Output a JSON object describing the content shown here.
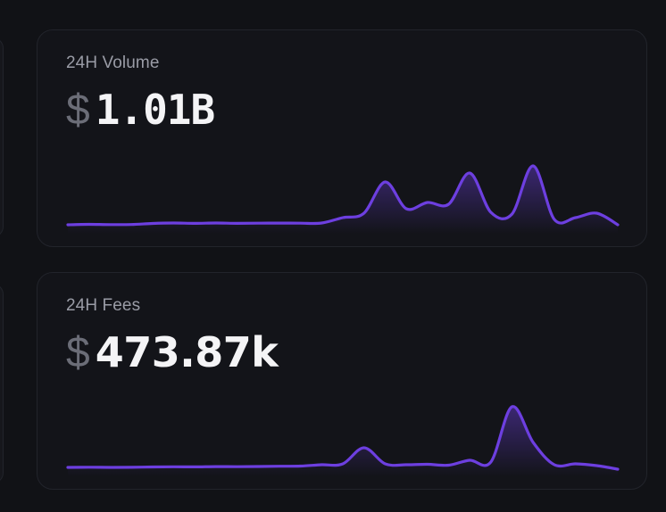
{
  "colors": {
    "background": "#111216",
    "card": "#131419",
    "border": "#22242b",
    "line": "#6d3fe0",
    "title": "#9a9ca6",
    "currency": "#6b6d77",
    "value": "#f4f4f6"
  },
  "cards": [
    {
      "title": "24H Volume",
      "currency": "$",
      "value": "1.01B",
      "sparkline": [
        2,
        2.5,
        2.2,
        2.3,
        3.5,
        4,
        3.6,
        4,
        3.6,
        3.8,
        3.9,
        3.8,
        4,
        10,
        15,
        50,
        20,
        27,
        25,
        60,
        16,
        14,
        68,
        8,
        10,
        15,
        2
      ]
    },
    {
      "title": "24H Fees",
      "currency": "$",
      "value": "473.87k",
      "sparkline": [
        2,
        2.2,
        2.0,
        2.1,
        2.5,
        2.7,
        2.6,
        2.9,
        2.8,
        3,
        3.3,
        3.5,
        5,
        6,
        24,
        6,
        5,
        5.5,
        4.5,
        10,
        8,
        70,
        30,
        5,
        6,
        4,
        0
      ]
    }
  ]
}
